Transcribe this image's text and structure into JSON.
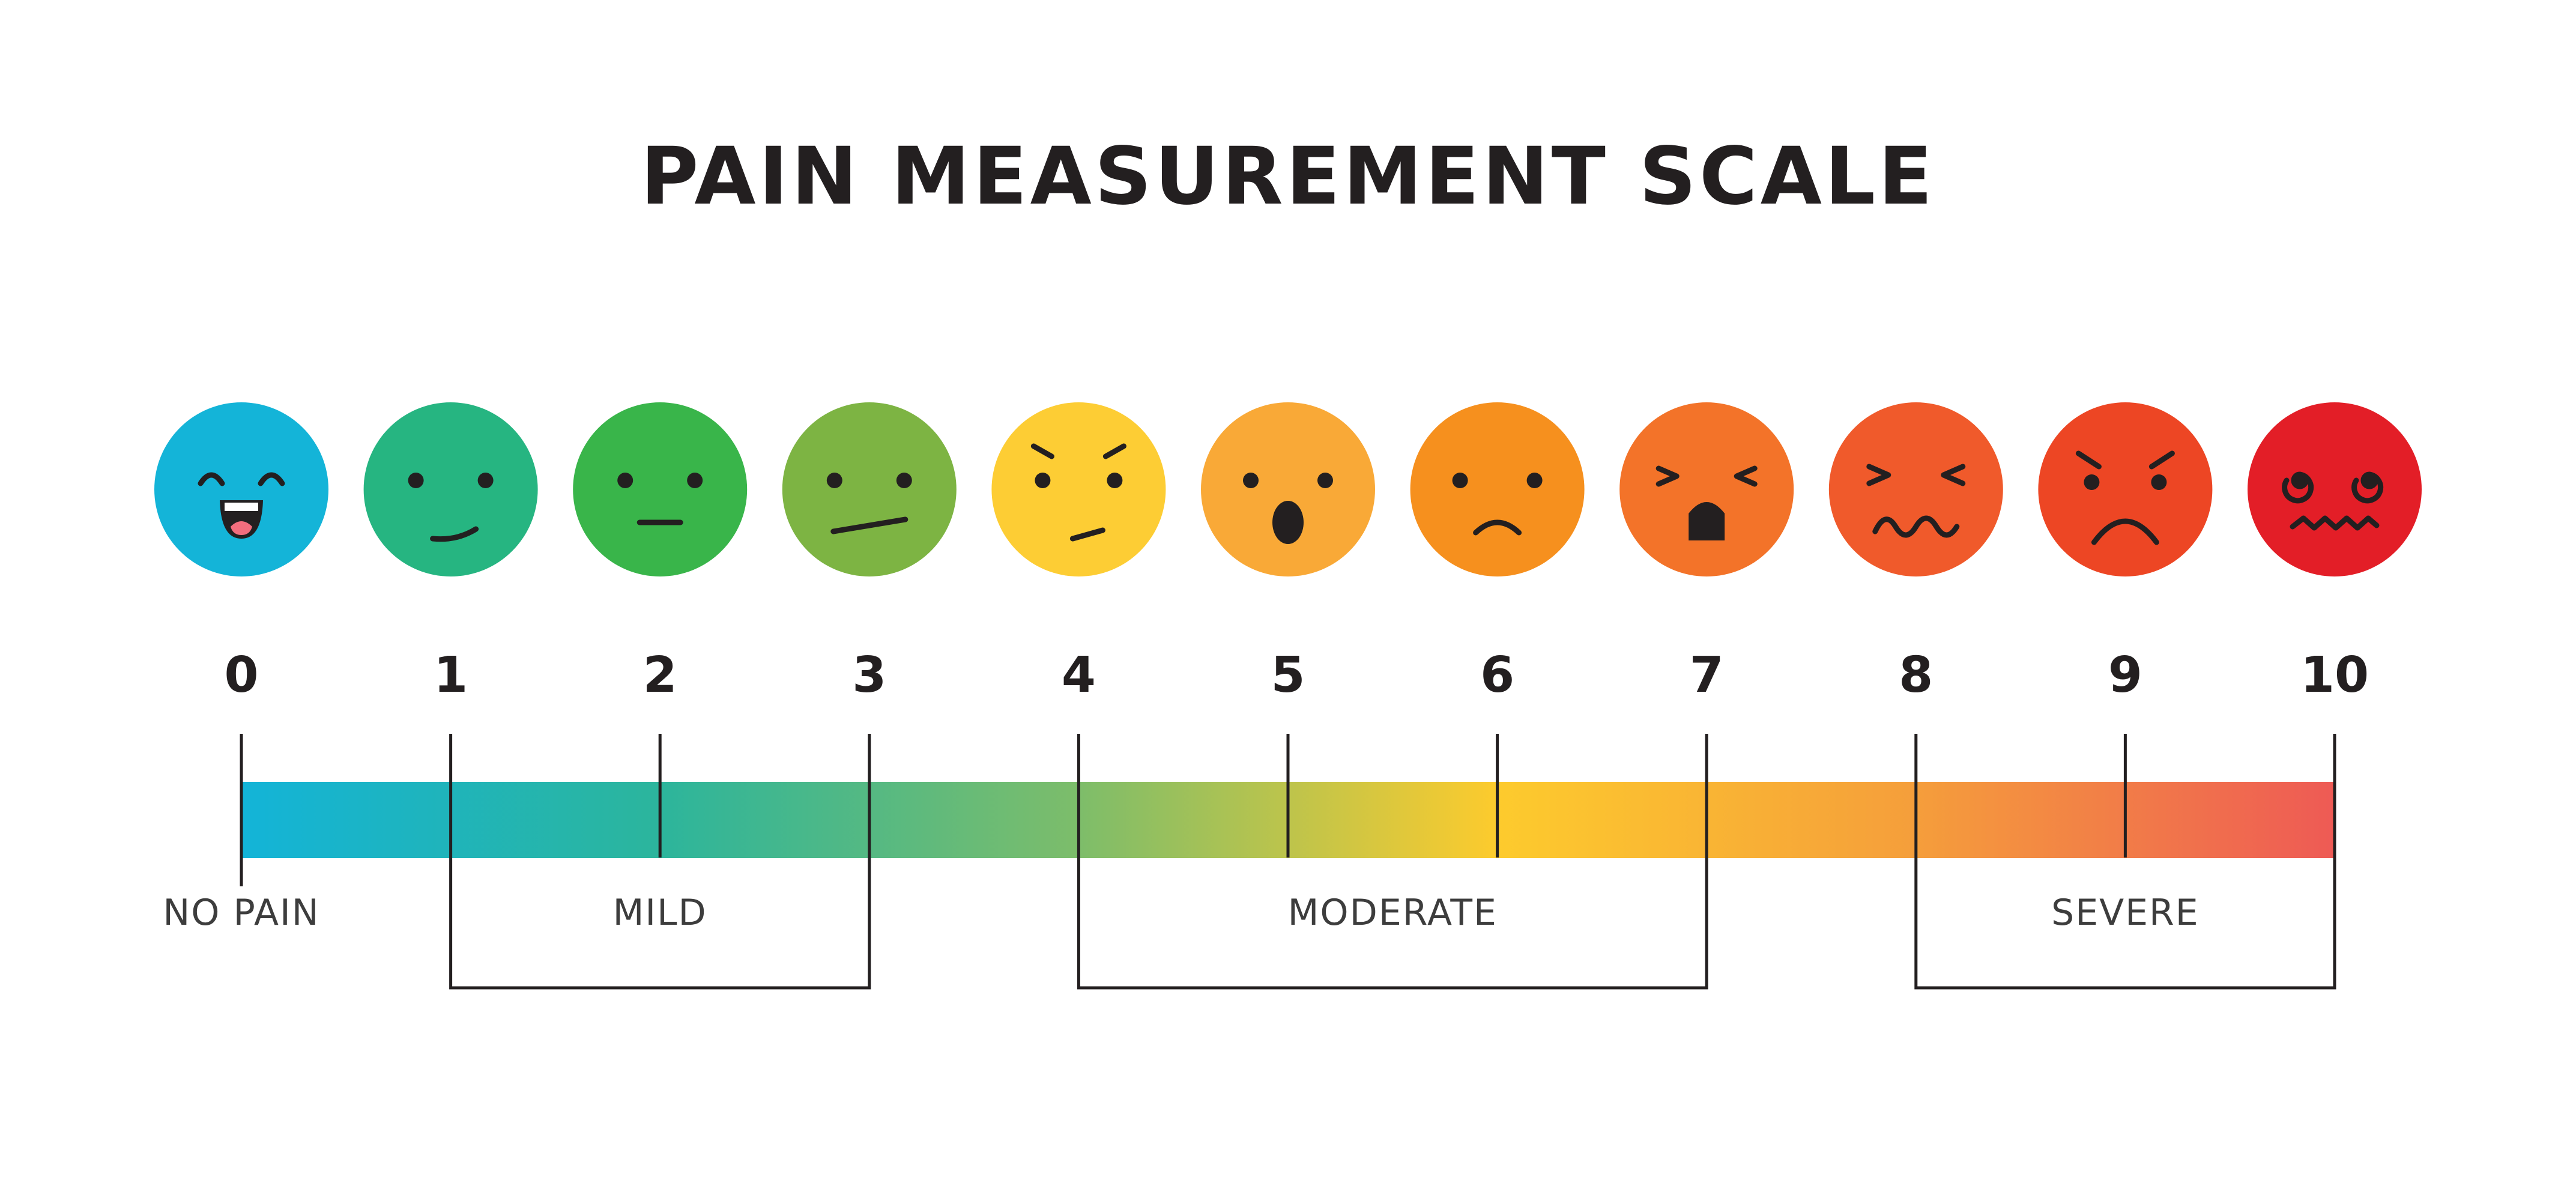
{
  "title": "PAIN MEASUREMENT SCALE",
  "scale": {
    "min": 0,
    "max": 10,
    "levels": [
      {
        "value": 0,
        "label": "0",
        "face": "laughing-face-icon",
        "color": "#14b4d8"
      },
      {
        "value": 1,
        "label": "1",
        "face": "smirking-face-icon",
        "color": "#26b581"
      },
      {
        "value": 2,
        "label": "2",
        "face": "neutral-face-icon",
        "color": "#39b54a"
      },
      {
        "value": 3,
        "label": "3",
        "face": "skeptical-face-icon",
        "color": "#7db443"
      },
      {
        "value": 4,
        "label": "4",
        "face": "annoyed-face-icon",
        "color": "#fdcd34"
      },
      {
        "value": 5,
        "label": "5",
        "face": "surprised-face-icon",
        "color": "#f9a937"
      },
      {
        "value": 6,
        "label": "6",
        "face": "sad-face-icon",
        "color": "#f6901e"
      },
      {
        "value": 7,
        "label": "7",
        "face": "shocked-face-icon",
        "color": "#f37329"
      },
      {
        "value": 8,
        "label": "8",
        "face": "grimacing-face-icon",
        "color": "#f05a2b"
      },
      {
        "value": 9,
        "label": "9",
        "face": "angry-face-icon",
        "color": "#ed4624"
      },
      {
        "value": 10,
        "label": "10",
        "face": "dizzy-face-icon",
        "color": "#e31e27"
      }
    ],
    "bar_colors": [
      "#13b4d8",
      "#2cb59c",
      "#7dbd6a",
      "#fdcb2d",
      "#f59e3b",
      "#ee5a55"
    ],
    "categories": [
      {
        "label": "NO PAIN",
        "from": 0,
        "to": 0
      },
      {
        "label": "MILD",
        "from": 1,
        "to": 3
      },
      {
        "label": "MODERATE",
        "from": 4,
        "to": 7
      },
      {
        "label": "SEVERE",
        "from": 8,
        "to": 10
      }
    ]
  }
}
